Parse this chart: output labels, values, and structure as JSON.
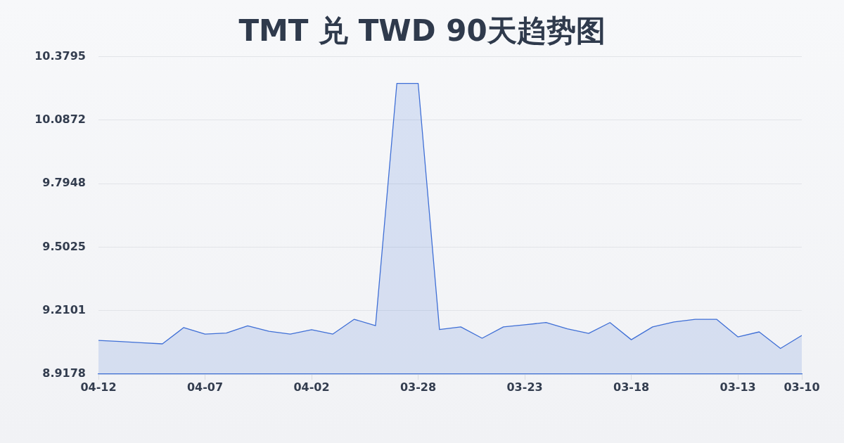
{
  "chart_data": {
    "type": "area",
    "title": "TMT 兑 TWD 90天趋势图",
    "x": [
      "--04-12",
      "--04-11",
      "--04-10",
      "--04-09",
      "--04-08",
      "--04-07",
      "--04-06",
      "--04-05",
      "--04-04",
      "--04-03",
      "--04-02",
      "--04-01",
      "--03-31",
      "--03-30",
      "--03-29",
      "--03-28",
      "--03-27",
      "--03-26",
      "--03-25",
      "--03-24",
      "--03-23",
      "--03-22",
      "--03-21",
      "--03-20",
      "--03-19",
      "--03-18",
      "--03-17",
      "--03-16",
      "--03-15",
      "--03-14",
      "--03-13",
      "--03-12",
      "--03-11",
      "--03-10"
    ],
    "series": [
      {
        "color": "#3f6fd6",
        "values": [
          9.073,
          9.068,
          9.062,
          9.057,
          9.132,
          9.102,
          9.107,
          9.14,
          9.115,
          9.102,
          9.122,
          9.102,
          9.17,
          9.141,
          10.256,
          10.256,
          9.123,
          9.135,
          9.083,
          9.135,
          9.145,
          9.155,
          9.126,
          9.105,
          9.155,
          9.076,
          9.135,
          9.158,
          9.17,
          9.17,
          9.089,
          9.112,
          9.036,
          9.096
        ]
      }
    ],
    "xlim": [
      "--04-12",
      "--03-10"
    ],
    "xticks": [
      {
        "value": "--04-12",
        "label": "04-12"
      },
      {
        "value": "--04-07",
        "label": "04-07"
      },
      {
        "value": "--04-02",
        "label": "04-02"
      },
      {
        "value": "--03-28",
        "label": "03-28"
      },
      {
        "value": "--03-23",
        "label": "03-23"
      },
      {
        "value": "--03-18",
        "label": "03-18"
      },
      {
        "value": "--03-13",
        "label": "03-13"
      },
      {
        "value": "--03-10",
        "label": "03-10"
      }
    ],
    "ylim": [
      8.9178,
      10.3795
    ],
    "yticks": [
      8.9178,
      9.2101,
      9.5025,
      9.7948,
      10.0872,
      10.3795
    ],
    "grid": "y"
  }
}
